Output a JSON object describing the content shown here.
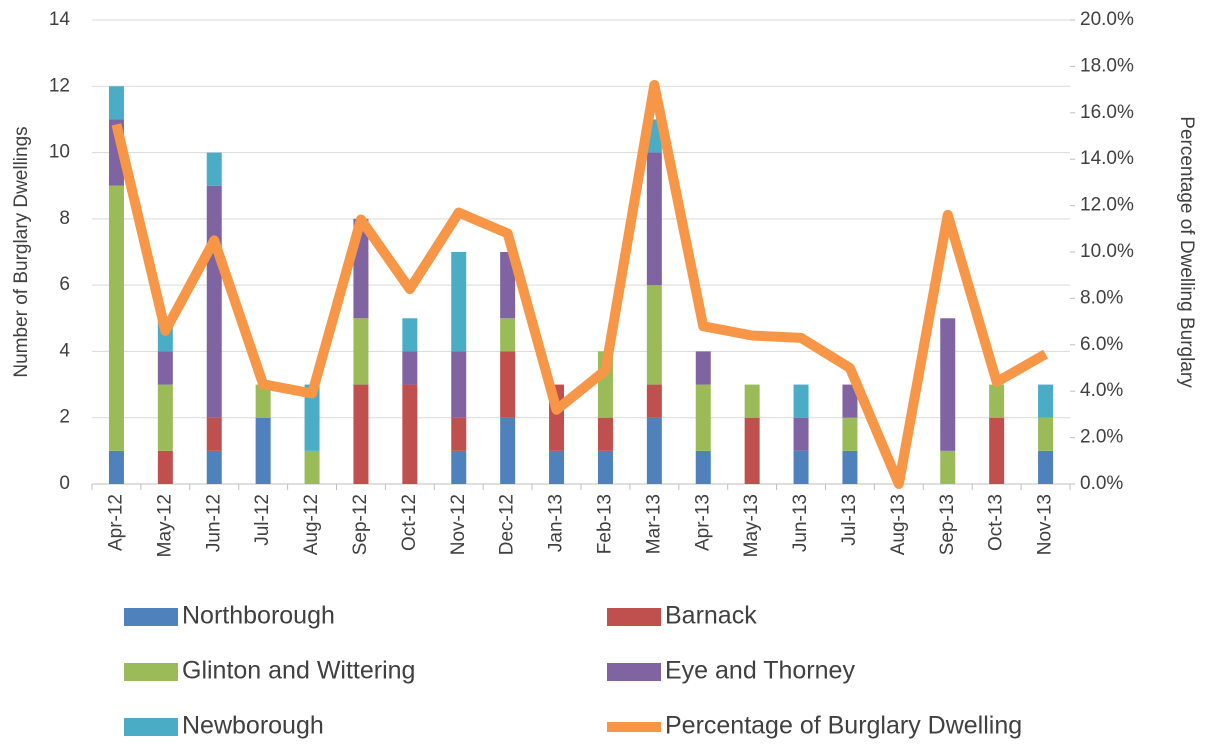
{
  "chart_data": {
    "type": "bar",
    "y_label": "Number of Burglary Dwellings",
    "y2_label": "Percentage of Dwelling Burglary",
    "categories": [
      "Apr-12",
      "May-12",
      "Jun-12",
      "Jul-12",
      "Aug-12",
      "Sep-12",
      "Oct-12",
      "Nov-12",
      "Dec-12",
      "Jan-13",
      "Feb-13",
      "Mar-13",
      "Apr-13",
      "May-13",
      "Jun-13",
      "Jul-13",
      "Aug-13",
      "Sep-13",
      "Oct-13",
      "Nov-13"
    ],
    "stacked": true,
    "grid": true,
    "legend": "bottom",
    "ylim": [
      0,
      14
    ],
    "yticks": [
      0,
      2,
      4,
      6,
      8,
      10,
      12,
      14
    ],
    "y2lim": [
      0,
      20
    ],
    "y2ticks": [
      {
        "value": 0,
        "label": "0.0%"
      },
      {
        "value": 2,
        "label": "2.0%"
      },
      {
        "value": 4,
        "label": "4.0%"
      },
      {
        "value": 6,
        "label": "6.0%"
      },
      {
        "value": 8,
        "label": "8.0%"
      },
      {
        "value": 10,
        "label": "10.0%"
      },
      {
        "value": 12,
        "label": "12.0%"
      },
      {
        "value": 14,
        "label": "14.0%"
      },
      {
        "value": 16,
        "label": "16.0%"
      },
      {
        "value": 18,
        "label": "18.0%"
      },
      {
        "value": 20,
        "label": "20.0%"
      }
    ],
    "series": [
      {
        "name": "Northborough",
        "color": "#4f81bd",
        "values": [
          1,
          0,
          1,
          2,
          0,
          0,
          0,
          1,
          2,
          1,
          1,
          2,
          1,
          0,
          1,
          1,
          0,
          0,
          0,
          1
        ]
      },
      {
        "name": "Barnack",
        "color": "#c0504d",
        "values": [
          0,
          1,
          1,
          0,
          0,
          3,
          3,
          1,
          2,
          2,
          1,
          1,
          0,
          2,
          0,
          0,
          0,
          0,
          2,
          0
        ]
      },
      {
        "name": "Glinton and Wittering",
        "color": "#9bbb59",
        "values": [
          8,
          2,
          0,
          1,
          1,
          2,
          0,
          0,
          1,
          0,
          2,
          3,
          2,
          1,
          0,
          1,
          0,
          1,
          1,
          1
        ]
      },
      {
        "name": "Eye and Thorney",
        "color": "#8064a2",
        "values": [
          2,
          1,
          7,
          0,
          0,
          3,
          1,
          2,
          2,
          0,
          0,
          4,
          1,
          0,
          1,
          1,
          0,
          4,
          0,
          0
        ]
      },
      {
        "name": "Newborough",
        "color": "#4bacc6",
        "values": [
          1,
          1,
          1,
          0,
          2,
          0,
          1,
          3,
          0,
          0,
          0,
          1,
          0,
          0,
          1,
          0,
          0,
          0,
          0,
          1
        ]
      },
      {
        "name": "Percentage of Burglary Dwelling",
        "color": "#f79646",
        "type": "line",
        "axis": "y2",
        "values": [
          15.5,
          6.6,
          10.5,
          4.3,
          3.9,
          11.4,
          8.4,
          11.7,
          10.8,
          3.2,
          4.9,
          17.2,
          6.8,
          6.4,
          6.3,
          5.0,
          0,
          11.6,
          4.4,
          5.6
        ]
      }
    ]
  }
}
